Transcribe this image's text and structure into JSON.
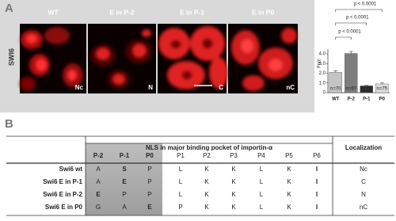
{
  "panel_a": {
    "label": "A",
    "row_label": "SWI6",
    "images": [
      {
        "title": "WT",
        "corner": "Nc"
      },
      {
        "title": "E in P-2",
        "corner": "N"
      },
      {
        "title": "E in P-1",
        "corner": "C"
      },
      {
        "title": "E in P0",
        "corner": "nC"
      }
    ]
  },
  "chart_data": {
    "type": "bar",
    "y_label": "Fn/c",
    "categories": [
      "WT",
      "P-2",
      "P-1",
      "P0"
    ],
    "values": [
      2.1,
      4.05,
      0.7,
      0.9
    ],
    "errors": [
      0.15,
      0.2,
      0.05,
      0.1
    ],
    "colors": [
      "#c4c4c4",
      "#7d7d7d",
      "#2e2e2e",
      "#dcdcdc"
    ],
    "bar_labels": [
      "n=70",
      "n=67",
      "n=72",
      "n=75"
    ],
    "ylim": [
      0,
      4.5
    ],
    "yticks": [
      0,
      {
        "value": 1,
        "label": "1.0"
      },
      {
        "value": 2,
        "label": "2.0"
      },
      {
        "value": 3,
        "label": "3.0"
      },
      {
        "value": 4,
        "label": "4.0"
      }
    ],
    "significance": [
      {
        "label": "p < 0.0001",
        "pair": [
          "WT",
          "P0"
        ]
      },
      {
        "label": "p < 0.0001",
        "pair": [
          "WT",
          "P-1"
        ]
      },
      {
        "label": "p < 0.0001",
        "pair": [
          "WT",
          "P-2"
        ]
      }
    ]
  },
  "panel_b": {
    "label": "B",
    "table": {
      "header": "NLS in major binding pocket of importin-α",
      "localization_header": "Localization",
      "columns": [
        "P-2",
        "P-1",
        "P0",
        "P1",
        "P2",
        "P3",
        "P4",
        "P5",
        "P6"
      ],
      "rows": [
        {
          "name": "Swi6 wt",
          "cells": [
            "A",
            "S",
            "P",
            "L",
            "K",
            "K",
            "L",
            "K",
            "I"
          ],
          "localization": "Nc"
        },
        {
          "name": "Swi6 E in P-1",
          "cells": [
            "A",
            "E",
            "P",
            "L",
            "K",
            "K",
            "L",
            "K",
            "I"
          ],
          "localization": "C"
        },
        {
          "name": "Swi6 E in P-2",
          "cells": [
            "E",
            "P",
            "P",
            "L",
            "K",
            "K",
            "L",
            "K",
            "I"
          ],
          "localization": "N"
        },
        {
          "name": "Swi6 E in P0",
          "cells": [
            "G",
            "A",
            "E",
            "P",
            "K",
            "K",
            "L",
            "K",
            "I"
          ],
          "localization": "nC"
        }
      ]
    }
  }
}
